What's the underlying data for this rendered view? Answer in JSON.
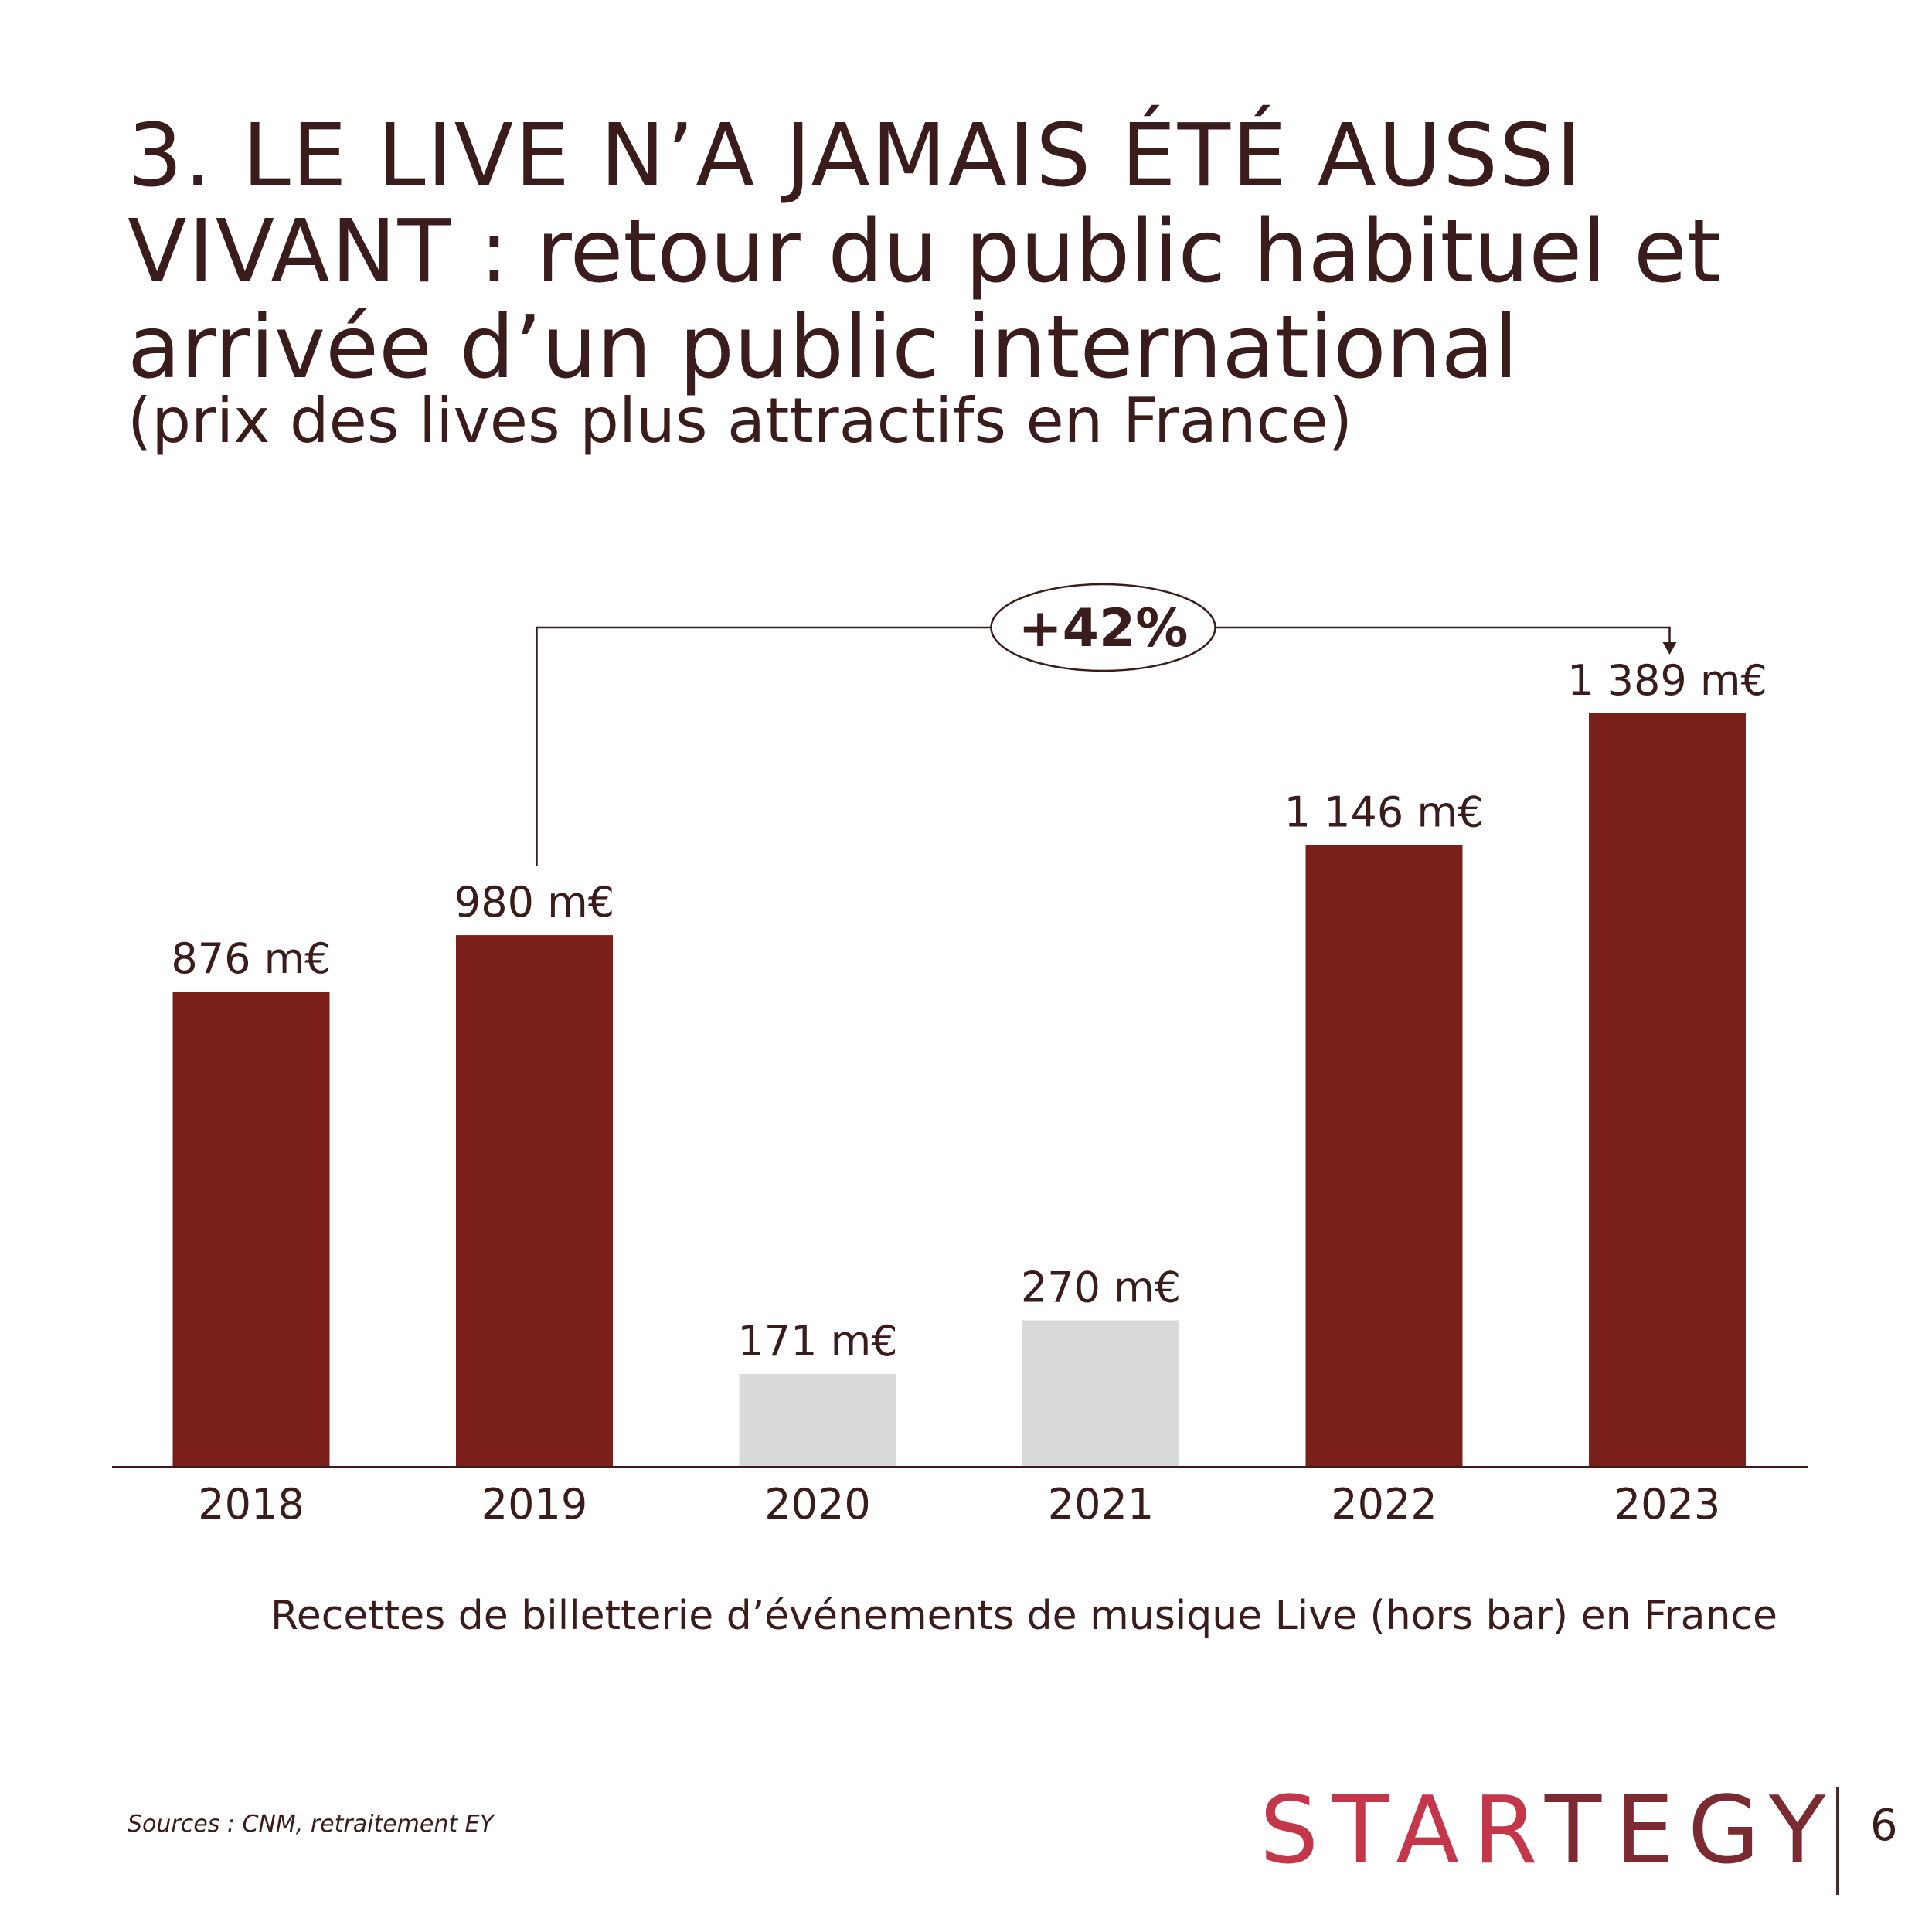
{
  "title": {
    "caps": "3. LE LIVE N’A JAMAIS ÉTÉ AUSSI VIVANT",
    "rest": " : retour du public habituel et arrivée d’un public international",
    "subtitle": "(prix des lives plus attractifs en France)"
  },
  "chart_data": {
    "type": "bar",
    "categories": [
      "2018",
      "2019",
      "2020",
      "2021",
      "2022",
      "2023"
    ],
    "values": [
      876,
      980,
      171,
      270,
      1146,
      1389
    ],
    "value_labels": [
      "876 m€",
      "980 m€",
      "171 m€",
      "270 m€",
      "1 146 m€",
      "1 389 m€"
    ],
    "bar_colors": [
      "#7b1f1a",
      "#7b1f1a",
      "#d8d9da",
      "#d8d9da",
      "#7b1f1a",
      "#7b1f1a"
    ],
    "annotation": {
      "label": "+42%",
      "from": "2019",
      "to": "2023"
    },
    "caption": "Recettes de billetterie d’événements de musique Live (hors bar) en France",
    "ylim": [
      0,
      1389
    ],
    "grid": false
  },
  "footer": {
    "source": "Sources : CNM, retraitement EY",
    "logo_red": "STAR",
    "logo_dark": "TEGY",
    "page_number": "6"
  },
  "colors": {
    "accent": "#7b1f1a",
    "muted_bar": "#d8d9da",
    "text": "#3a1c1c"
  }
}
